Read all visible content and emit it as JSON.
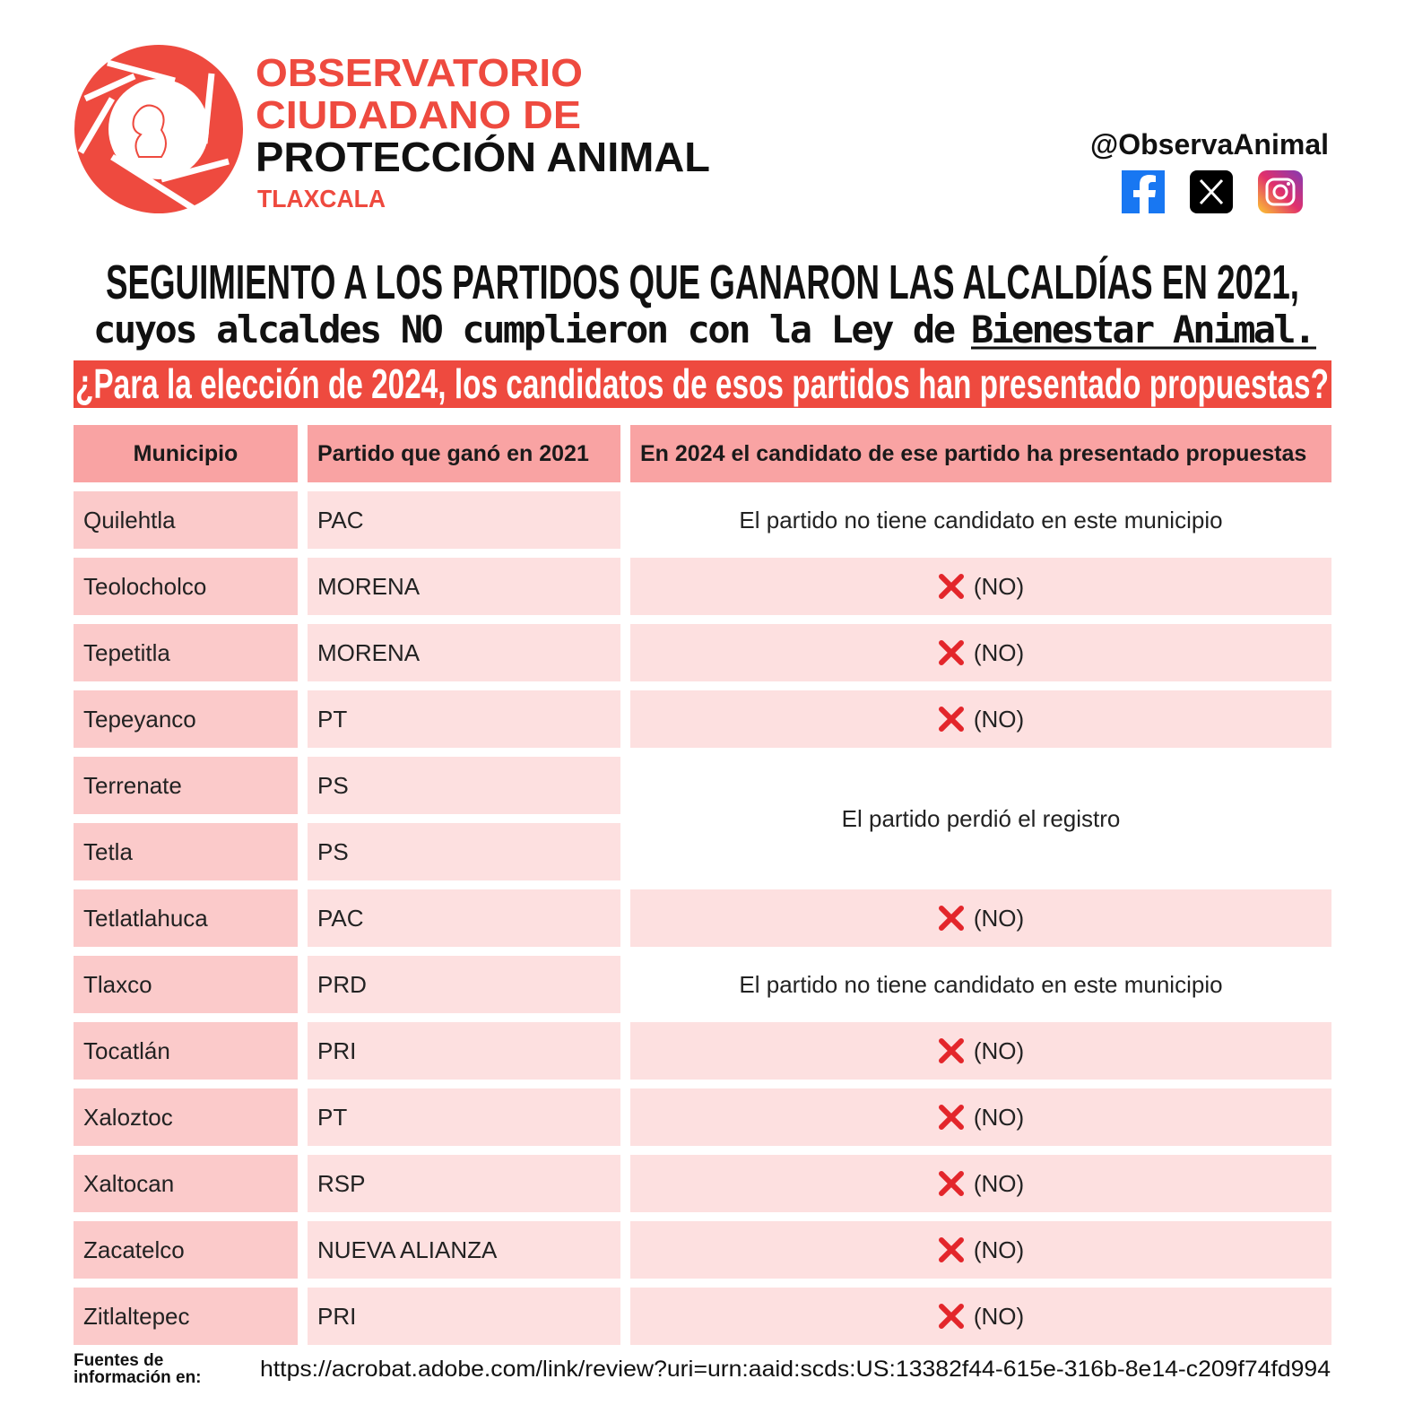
{
  "header": {
    "org_lines": [
      "OBSERVATORIO",
      "CIUDADANO DE",
      "PROTECCIÓN ANIMAL"
    ],
    "location": "TLAXCALA",
    "handle": "@ObservaAnimal"
  },
  "headline": {
    "line1": "SEGUIMIENTO A LOS PARTIDOS QUE GANARON LAS ALCALDÍAS EN 2021,",
    "line2": "cuyos alcaldes NO cumplieron con la Ley de",
    "line2_underlined": "Bienestar Animal.",
    "question": "¿Para la elección de 2024, los candidatos de esos partidos han presentado propuestas?"
  },
  "table": {
    "columns": [
      "Municipio",
      "Partido que ganó en 2021",
      "En 2024 el candidato de ese partido ha presentado propuestas"
    ],
    "rows": [
      [
        "Quilehtla",
        "PAC",
        {
          "note": "El partido no tiene candidato en este municipio"
        }
      ],
      [
        "Teolocholco",
        "MORENA",
        {
          "answer": "(NO)"
        }
      ],
      [
        "Tepetitla",
        "MORENA",
        {
          "answer": "(NO)"
        }
      ],
      [
        "Tepeyanco",
        "PT",
        {
          "answer": "(NO)"
        }
      ],
      [
        "Terrenate",
        "PS",
        {
          "note": "El partido perdió el registro"
        }
      ],
      [
        "Tetla",
        "PS"
      ],
      [
        "Tetlatlahuca",
        "PAC",
        {
          "answer": "(NO)"
        }
      ],
      [
        "Tlaxco",
        "PRD",
        {
          "note": "El partido no tiene candidato en este municipio"
        }
      ],
      [
        "Tocatlán",
        "PRI",
        {
          "answer": "(NO)"
        }
      ],
      [
        "Xaloztoc",
        "PT",
        {
          "answer": "(NO)"
        }
      ],
      [
        "Xaltocan",
        "RSP",
        {
          "answer": "(NO)"
        }
      ],
      [
        "Zacatelco",
        "NUEVA ALIANZA",
        {
          "answer": "(NO)"
        }
      ],
      [
        "Zitlaltepec",
        "PRI",
        {
          "answer": "(NO)"
        }
      ]
    ]
  },
  "footer": {
    "label_lines": [
      "Fuentes de",
      "información en:"
    ],
    "url": "https://acrobat.adobe.com/link/review?uri=urn:aaid:scds:US:13382f44-615e-316b-8e14-c209f74fd994"
  }
}
